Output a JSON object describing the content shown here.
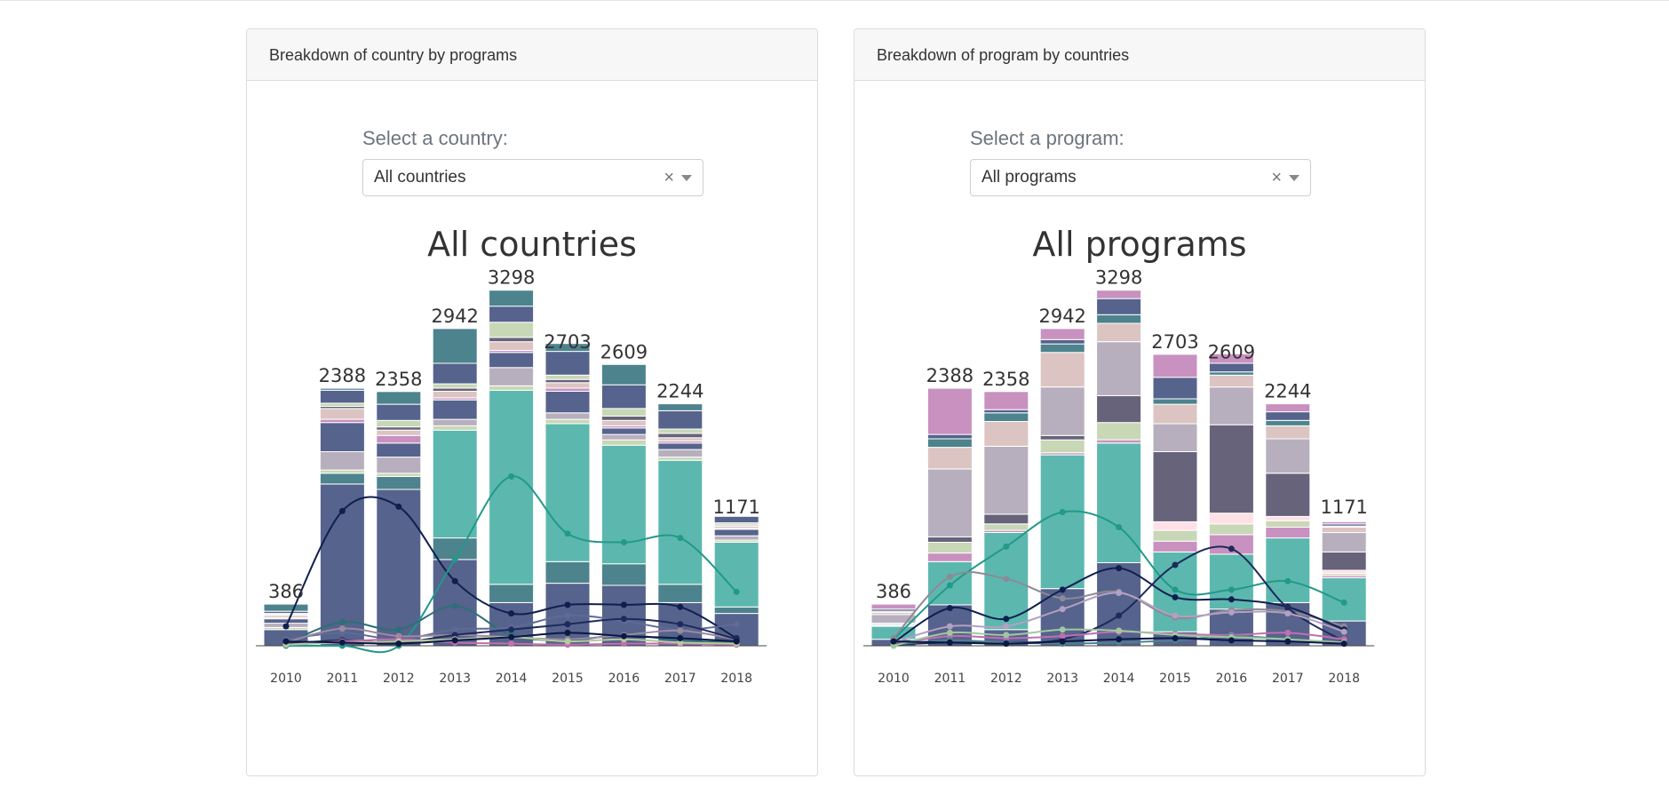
{
  "panels": [
    {
      "header": "Breakdown of country by programs",
      "select_label": "Select a country:",
      "select_value": "All countries",
      "clear_glyph": "×",
      "chart_data": {
        "type": "bar",
        "title": "All countries",
        "categories": [
          "2010",
          "2011",
          "2012",
          "2013",
          "2014",
          "2015",
          "2016",
          "2017",
          "2018"
        ],
        "totals": [
          386,
          2388,
          2358,
          2942,
          3298,
          2703,
          2609,
          2244,
          1171
        ],
        "total_labels": [
          "386",
          "2388",
          "2358",
          "2942",
          "3298",
          "2703",
          "2609",
          "2244",
          "1171"
        ],
        "ylim": [
          0,
          3600
        ],
        "stacks": [
          {
            "color": "#56638c",
            "values": [
              150,
              1500,
              1450,
              800,
              400,
              580,
              560,
              400,
              300
            ]
          },
          {
            "color": "#4d838d",
            "values": [
              0,
              100,
              120,
              200,
              170,
              200,
              200,
              170,
              60
            ]
          },
          {
            "color": "#5cb8ae",
            "values": [
              0,
              0,
              0,
              1000,
              1800,
              1280,
              1100,
              1150,
              600
            ]
          },
          {
            "color": "#c8d7b5",
            "values": [
              20,
              30,
              30,
              40,
              40,
              40,
              50,
              30,
              20
            ]
          },
          {
            "color": "#b7afbe",
            "values": [
              40,
              170,
              150,
              60,
              170,
              60,
              50,
              70,
              40
            ]
          },
          {
            "color": "#56638c",
            "values": [
              40,
              270,
              130,
              180,
              140,
              200,
              60,
              60,
              60
            ]
          },
          {
            "color": "#c891bf",
            "values": [
              10,
              30,
              70,
              20,
              20,
              30,
              20,
              20,
              10
            ]
          },
          {
            "color": "#dbc4c2",
            "values": [
              20,
              100,
              50,
              60,
              80,
              50,
              50,
              30,
              20
            ]
          },
          {
            "color": "#66637a",
            "values": [
              10,
              20,
              30,
              30,
              40,
              30,
              40,
              40,
              10
            ]
          },
          {
            "color": "#c8d7b5",
            "values": [
              10,
              30,
              60,
              40,
              140,
              40,
              70,
              40,
              20
            ]
          },
          {
            "color": "#56638c",
            "values": [
              20,
              120,
              150,
              190,
              150,
              220,
              220,
              170,
              60
            ]
          },
          {
            "color": "#4d838d",
            "values": [
              66,
              18,
              118,
              322,
              148,
              73,
              189,
              64,
              -29
            ]
          }
        ],
        "lines": [
          {
            "color": "#0f1f4f",
            "values": [
              180,
              1250,
              1290,
              600,
              300,
              380,
              380,
              360,
              70
            ]
          },
          {
            "color": "#22998a",
            "values": [
              0,
              0,
              0,
              800,
              1570,
              1040,
              960,
              1000,
              500
            ]
          },
          {
            "color": "#2c6f78",
            "values": [
              20,
              220,
              150,
              370,
              100,
              50,
              100,
              50,
              30
            ]
          },
          {
            "color": "#5f6a96",
            "values": [
              60,
              120,
              60,
              150,
              170,
              280,
              230,
              150,
              200
            ]
          },
          {
            "color": "#9a8aa0",
            "values": [
              30,
              160,
              90,
              100,
              80,
              60,
              100,
              140,
              60
            ]
          },
          {
            "color": "#1d2a5c",
            "values": [
              20,
              50,
              30,
              100,
              150,
              200,
              250,
              200,
              60
            ]
          },
          {
            "color": "#c06fb0",
            "values": [
              10,
              40,
              60,
              30,
              20,
              10,
              20,
              20,
              10
            ]
          },
          {
            "color": "#b6c99d",
            "values": [
              10,
              30,
              40,
              60,
              80,
              40,
              60,
              30,
              20
            ]
          },
          {
            "color": "#0c1845",
            "values": [
              40,
              30,
              20,
              50,
              80,
              120,
              90,
              70,
              40
            ]
          }
        ]
      }
    },
    {
      "header": "Breakdown of program by countries",
      "select_label": "Select a program:",
      "select_value": "All programs",
      "clear_glyph": "×",
      "chart_data": {
        "type": "bar",
        "title": "All programs",
        "categories": [
          "2010",
          "2011",
          "2012",
          "2013",
          "2014",
          "2015",
          "2016",
          "2017",
          "2018"
        ],
        "totals": [
          386,
          2388,
          2358,
          2942,
          3298,
          2703,
          2609,
          2244,
          1171
        ],
        "total_labels": [
          "386",
          "2388",
          "2358",
          "2942",
          "3298",
          "2703",
          "2609",
          "2244",
          "1171"
        ],
        "ylim": [
          0,
          3600
        ],
        "stacks": [
          {
            "color": "#56638c",
            "values": [
              60,
              380,
              150,
              530,
              770,
              130,
              340,
              400,
              230
            ]
          },
          {
            "color": "#5cb8ae",
            "values": [
              120,
              400,
              900,
              1240,
              1110,
              740,
              510,
              600,
              400
            ]
          },
          {
            "color": "#c891bf",
            "values": [
              10,
              80,
              20,
              20,
              30,
              100,
              180,
              100,
              20
            ]
          },
          {
            "color": "#c8d7b5",
            "values": [
              10,
              100,
              60,
              120,
              160,
              100,
              100,
              60,
              20
            ]
          },
          {
            "color": "#ffe0e6",
            "values": [
              0,
              0,
              0,
              0,
              0,
              80,
              100,
              40,
              30
            ]
          },
          {
            "color": "#66637a",
            "values": [
              10,
              50,
              90,
              40,
              250,
              650,
              820,
              400,
              170
            ]
          },
          {
            "color": "#b7afbe",
            "values": [
              80,
              630,
              630,
              450,
              500,
              260,
              350,
              320,
              180
            ]
          },
          {
            "color": "#dbc4c2",
            "values": [
              20,
              200,
              230,
              320,
              170,
              180,
              110,
              120,
              50
            ]
          },
          {
            "color": "#4d838d",
            "values": [
              10,
              80,
              80,
              80,
              80,
              50,
              30,
              50,
              10
            ]
          },
          {
            "color": "#56638c",
            "values": [
              20,
              40,
              30,
              40,
              150,
              200,
              80,
              80,
              20
            ]
          },
          {
            "color": "#c891bf",
            "values": [
              46,
              428,
              168,
              102,
              78,
              213,
              89,
              74,
              21
            ]
          }
        ],
        "lines": [
          {
            "color": "#22998a",
            "values": [
              60,
              560,
              920,
              1240,
              1100,
              520,
              520,
              600,
              400
            ]
          },
          {
            "color": "#8c8a96",
            "values": [
              70,
              640,
              620,
              440,
              500,
              260,
              330,
              320,
              180
            ]
          },
          {
            "color": "#0f1f4f",
            "values": [
              30,
              350,
              250,
              520,
              720,
              450,
              430,
              360,
              150
            ]
          },
          {
            "color": "#1d2a5c",
            "values": [
              10,
              30,
              30,
              60,
              280,
              750,
              900,
              350,
              40
            ]
          },
          {
            "color": "#b3a0c3",
            "values": [
              30,
              180,
              180,
              340,
              490,
              280,
              310,
              300,
              130
            ]
          },
          {
            "color": "#c06fb0",
            "values": [
              10,
              90,
              70,
              90,
              130,
              110,
              100,
              120,
              60
            ]
          },
          {
            "color": "#4d838d",
            "values": [
              10,
              50,
              30,
              20,
              30,
              50,
              90,
              60,
              20
            ]
          },
          {
            "color": "#a0c8a0",
            "values": [
              0,
              120,
              100,
              150,
              140,
              100,
              80,
              60,
              30
            ]
          },
          {
            "color": "#0c1845",
            "values": [
              40,
              30,
              20,
              40,
              60,
              70,
              50,
              40,
              20
            ]
          }
        ]
      }
    }
  ]
}
